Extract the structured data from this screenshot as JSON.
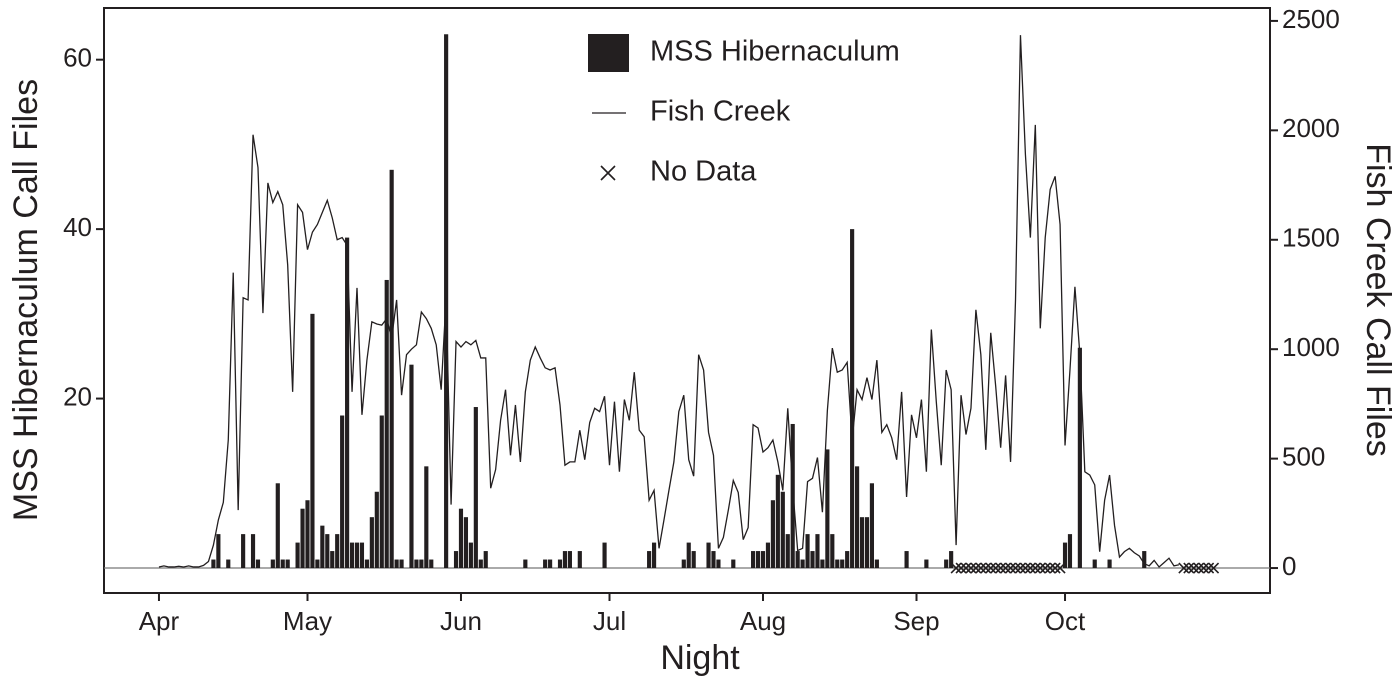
{
  "chart_data": {
    "type": "bar",
    "x_label": "Night",
    "y_label": "MSS Hibernaculum Call Files",
    "y2_label": "Fish Creek Call Files",
    "xlim": [
      -11.1,
      224.4
    ],
    "xticks": [
      {
        "value": 0,
        "label": "Apr"
      },
      {
        "value": 30,
        "label": "May"
      },
      {
        "value": 61,
        "label": "Jun"
      },
      {
        "value": 91,
        "label": "Jul"
      },
      {
        "value": 122,
        "label": "Aug"
      },
      {
        "value": 153,
        "label": "Sep"
      },
      {
        "value": 183,
        "label": "Oct"
      }
    ],
    "ylim": [
      -2.95,
      66.1
    ],
    "yticks": [
      20,
      40,
      60
    ],
    "y2lim": [
      -114,
      2559
    ],
    "y2ticks": [
      0,
      500,
      1000,
      1500,
      2000,
      2500
    ],
    "legend": "upper center",
    "series": [
      {
        "name": "MSS Hibernaculum",
        "type": "bar",
        "color": "#231f20",
        "x": [
          11,
          12,
          14,
          17,
          19,
          20,
          23,
          24,
          25,
          26,
          28,
          29,
          30,
          31,
          32,
          33,
          34,
          35,
          36,
          37,
          38,
          39,
          40,
          41,
          42,
          43,
          44,
          45,
          46,
          47,
          48,
          49,
          51,
          52,
          53,
          54,
          55,
          58,
          60,
          61,
          62,
          63,
          64,
          65,
          66,
          74,
          78,
          79,
          81,
          82,
          83,
          85,
          90,
          99,
          100,
          106,
          107,
          108,
          111,
          112,
          113,
          116,
          120,
          121,
          122,
          123,
          124,
          125,
          126,
          127,
          128,
          129,
          130,
          131,
          132,
          133,
          134,
          135,
          136,
          137,
          138,
          139,
          140,
          141,
          142,
          143,
          144,
          145,
          151,
          155,
          159,
          160,
          183,
          184,
          186,
          189,
          192,
          199
        ],
        "values": [
          1,
          4,
          1,
          4,
          4,
          1,
          1,
          10,
          1,
          1,
          3,
          7,
          8,
          30,
          1,
          5,
          4,
          2,
          4,
          18,
          39,
          3,
          3,
          3,
          1,
          6,
          9,
          18,
          34,
          47,
          1,
          1,
          24,
          1,
          1,
          12,
          1,
          63,
          2,
          7,
          6,
          3,
          19,
          1,
          2,
          1,
          1,
          1,
          1,
          2,
          2,
          2,
          3,
          2,
          3,
          1,
          3,
          2,
          3,
          2,
          1,
          1,
          2,
          2,
          2,
          3,
          8,
          11,
          9,
          4,
          17,
          2,
          1,
          4,
          2,
          4,
          1,
          14,
          4,
          1,
          1,
          2,
          40,
          12,
          6,
          6,
          10,
          1,
          2,
          1,
          1,
          2,
          3,
          4,
          26,
          1,
          1,
          2
        ]
      },
      {
        "name": "Fish Creek",
        "type": "line",
        "axis": "y2",
        "color": "#231f20",
        "x": [
          0,
          1,
          2,
          3,
          4,
          5,
          6,
          7,
          8,
          9,
          10,
          11,
          12,
          13,
          14,
          15,
          16,
          17,
          18,
          19,
          20,
          21,
          22,
          23,
          24,
          25,
          26,
          27,
          28,
          29,
          30,
          31,
          32,
          33,
          34,
          35,
          36,
          37,
          38,
          39,
          40,
          41,
          42,
          43,
          44,
          45,
          46,
          47,
          48,
          49,
          50,
          51,
          52,
          53,
          54,
          55,
          56,
          57,
          58,
          59,
          60,
          61,
          62,
          63,
          64,
          65,
          66,
          67,
          68,
          69,
          70,
          71,
          72,
          73,
          74,
          75,
          76,
          77,
          78,
          79,
          80,
          81,
          82,
          83,
          84,
          85,
          86,
          87,
          88,
          89,
          90,
          91,
          92,
          93,
          94,
          95,
          96,
          97,
          98,
          99,
          100,
          101,
          102,
          103,
          104,
          105,
          106,
          107,
          108,
          109,
          110,
          111,
          112,
          113,
          114,
          115,
          116,
          117,
          118,
          119,
          120,
          121,
          122,
          123,
          124,
          125,
          126,
          127,
          128,
          129,
          130,
          131,
          132,
          133,
          134,
          135,
          136,
          137,
          138,
          139,
          140,
          141,
          142,
          143,
          144,
          145,
          146,
          147,
          148,
          149,
          150,
          151,
          152,
          153,
          154,
          155,
          156,
          157,
          158,
          159,
          160,
          161,
          162,
          163,
          164,
          165,
          166,
          167,
          168,
          169,
          170,
          171,
          172,
          173,
          174,
          175,
          176,
          177,
          178,
          179,
          180,
          181,
          182,
          183,
          184,
          185,
          186,
          187,
          188,
          189,
          190,
          191,
          192,
          193,
          194,
          195,
          196,
          197,
          198,
          199,
          200,
          201,
          202,
          203,
          204,
          205,
          206
        ],
        "values": [
          5,
          10,
          5,
          5,
          8,
          5,
          10,
          5,
          5,
          12,
          30,
          105,
          220,
          300,
          585,
          1350,
          265,
          1235,
          1225,
          1980,
          1830,
          1165,
          1760,
          1670,
          1720,
          1660,
          1385,
          805,
          1660,
          1625,
          1455,
          1535,
          1570,
          1625,
          1680,
          1600,
          1500,
          1510,
          1475,
          805,
          1280,
          700,
          950,
          1125,
          1115,
          1110,
          1140,
          1050,
          1225,
          790,
          975,
          1000,
          1020,
          1170,
          1140,
          1095,
          1020,
          815,
          1235,
          290,
          1035,
          1010,
          1035,
          1020,
          1040,
          960,
          960,
          365,
          450,
          675,
          815,
          515,
          745,
          485,
          805,
          950,
          1010,
          960,
          915,
          905,
          915,
          745,
          470,
          485,
          485,
          630,
          495,
          665,
          730,
          715,
          785,
          470,
          760,
          440,
          770,
          675,
          895,
          630,
          600,
          310,
          355,
          90,
          220,
          355,
          485,
          715,
          790,
          495,
          420,
          975,
          905,
          620,
          515,
          90,
          140,
          265,
          400,
          345,
          130,
          185,
          655,
          640,
          530,
          550,
          585,
          485,
          355,
          730,
          365,
          80,
          90,
          395,
          410,
          505,
          255,
          720,
          1005,
          895,
          905,
          940,
          585,
          815,
          770,
          870,
          770,
          950,
          620,
          655,
          595,
          495,
          805,
          325,
          700,
          595,
          770,
          440,
          1090,
          760,
          470,
          905,
          815,
          105,
          790,
          610,
          730,
          1180,
          975,
          540,
          1075,
          830,
          550,
          880,
          485,
          1225,
          2435,
          1890,
          1510,
          2025,
          1095,
          1510,
          1730,
          1790,
          1570,
          560,
          905,
          1285,
          975,
          440,
          425,
          380,
          75,
          310,
          425,
          195,
          50,
          75,
          90,
          70,
          55,
          20,
          10,
          35,
          5,
          25,
          45,
          10,
          15
        ]
      },
      {
        "name": "No Data",
        "type": "scatter",
        "marker": "x",
        "color": "#231f20",
        "x": [
          161,
          162,
          163,
          164,
          165,
          166,
          167,
          168,
          169,
          170,
          171,
          172,
          173,
          174,
          175,
          176,
          177,
          178,
          179,
          180,
          181,
          182,
          207,
          208,
          209,
          210,
          211,
          212,
          213
        ],
        "values": [
          0,
          0,
          0,
          0,
          0,
          0,
          0,
          0,
          0,
          0,
          0,
          0,
          0,
          0,
          0,
          0,
          0,
          0,
          0,
          0,
          0,
          0,
          0,
          0,
          0,
          0,
          0,
          0,
          0
        ]
      }
    ]
  }
}
